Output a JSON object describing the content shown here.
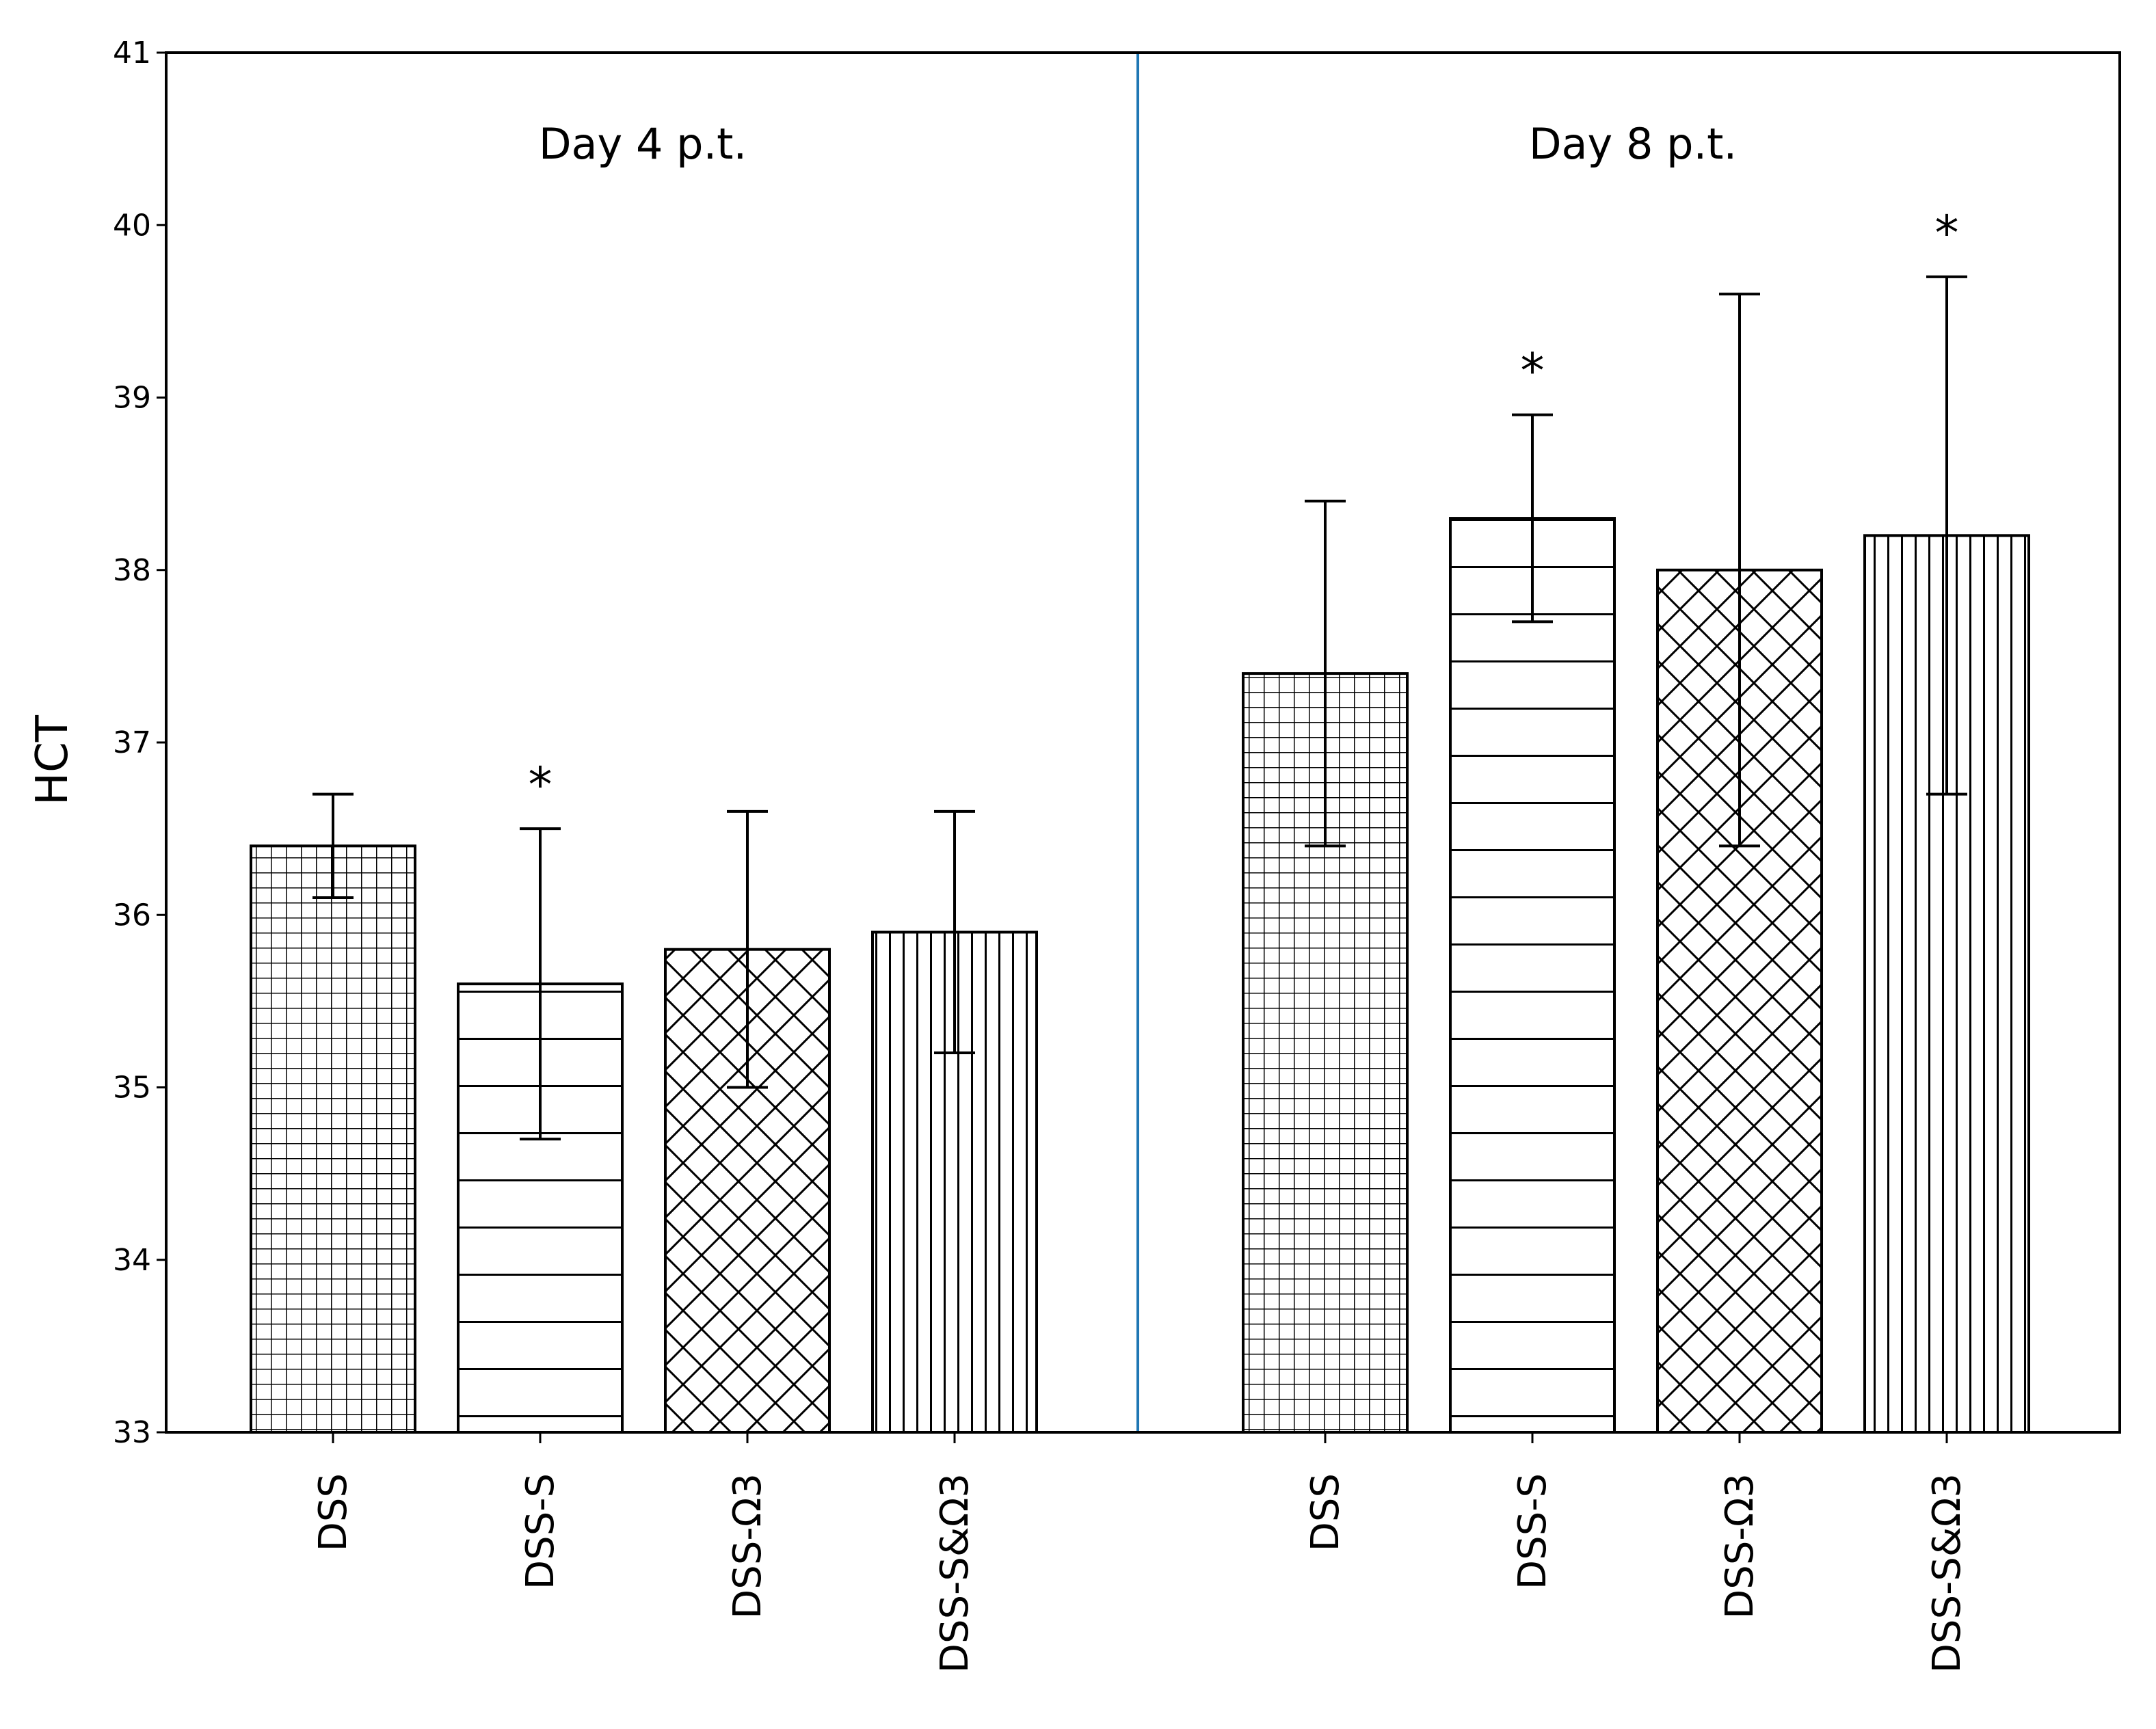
{
  "chart_data": {
    "type": "bar",
    "ylabel": "HCT",
    "ylim": [
      33,
      41
    ],
    "yticks": [
      33,
      34,
      35,
      36,
      37,
      38,
      39,
      40,
      41
    ],
    "grid": false,
    "panels": [
      {
        "label": "Day 4 p.t.",
        "bars": [
          {
            "category": "DSS",
            "value": 36.4,
            "err_low": 36.1,
            "err_high": 36.7,
            "hatch": "grid",
            "significant": false
          },
          {
            "category": "DSS-S",
            "value": 35.6,
            "err_low": 34.7,
            "err_high": 36.5,
            "hatch": "horizontal",
            "significant": true
          },
          {
            "category": "DSS-Ω3",
            "value": 35.8,
            "err_low": 35.0,
            "err_high": 36.6,
            "hatch": "cross",
            "significant": false
          },
          {
            "category": "DSS-S&Ω3",
            "value": 35.9,
            "err_low": 35.2,
            "err_high": 36.6,
            "hatch": "vertical",
            "significant": false
          }
        ]
      },
      {
        "label": "Day 8 p.t.",
        "bars": [
          {
            "category": "DSS",
            "value": 37.4,
            "err_low": 36.4,
            "err_high": 38.4,
            "hatch": "grid",
            "significant": false
          },
          {
            "category": "DSS-S",
            "value": 38.3,
            "err_low": 37.7,
            "err_high": 38.9,
            "hatch": "horizontal",
            "significant": true
          },
          {
            "category": "DSS-Ω3",
            "value": 38.0,
            "err_low": 36.4,
            "err_high": 39.6,
            "hatch": "cross",
            "significant": false
          },
          {
            "category": "DSS-S&Ω3",
            "value": 38.2,
            "err_low": 36.7,
            "err_high": 39.7,
            "hatch": "vertical",
            "significant": true
          }
        ]
      }
    ],
    "significance_marker": "*",
    "colors": {
      "bar_edge": "#000000",
      "bar_fill": "#ffffff",
      "divider": "#1f77b4"
    }
  }
}
